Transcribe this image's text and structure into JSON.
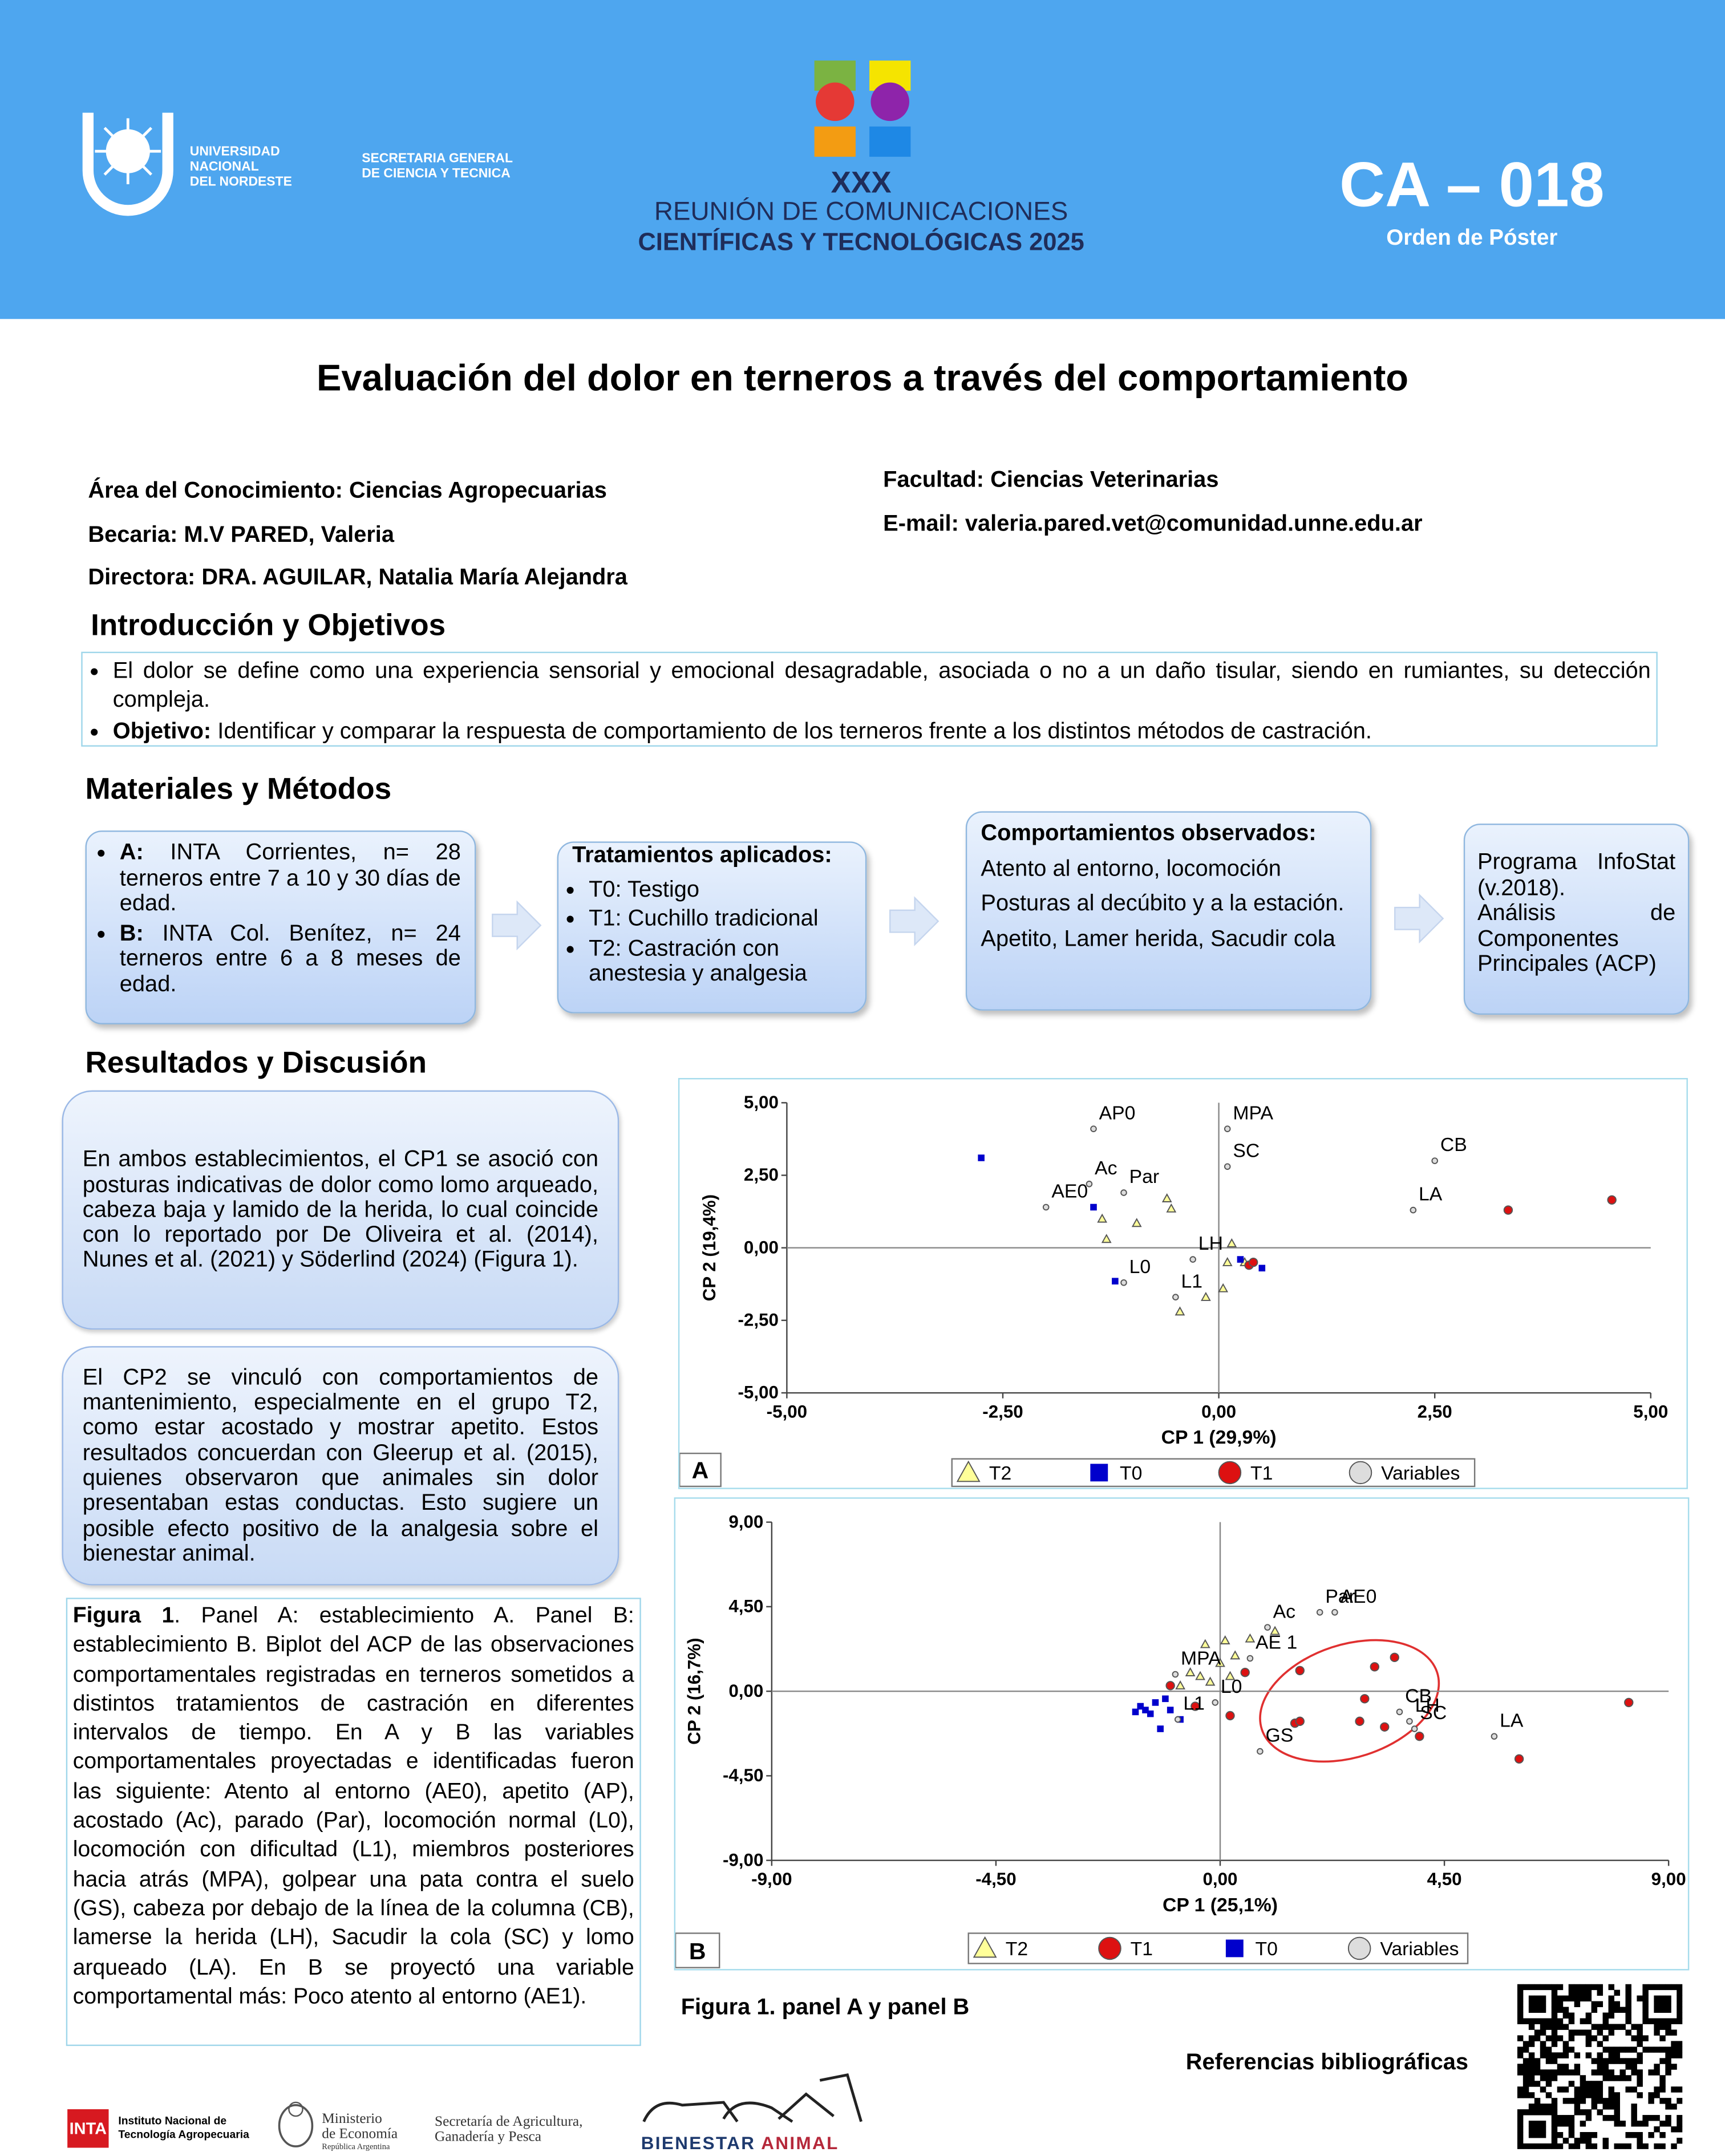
{
  "header": {
    "university": [
      "UNIVERSIDAD",
      "NACIONAL",
      "DEL NORDESTE"
    ],
    "secretaria": [
      "SECRETARIA GENERAL",
      "DE CIENCIA Y TECNICA"
    ],
    "event": [
      "XXX",
      "REUNIÓN DE COMUNICACIONES",
      "CIENTÍFICAS Y TECNOLÓGICAS 2025"
    ],
    "code": "CA – 018",
    "code_label": "Orden de Póster"
  },
  "title": "Evaluación del dolor en terneros a través del comportamiento",
  "info": {
    "area": "Área del Conocimiento: Ciencias Agropecuarias",
    "becaria": "Becaria: M.V PARED, Valeria",
    "directora": "Directora: DRA. AGUILAR, Natalia  María Alejandra",
    "facultad": "Facultad: Ciencias Veterinarias",
    "email": "E-mail: valeria.pared.vet@comunidad.unne.edu.ar"
  },
  "intro": {
    "heading": "Introducción y Objetivos",
    "bullet1": "El dolor se define como una experiencia sensorial y emocional desagradable, asociada o no a un daño tisular, siendo en rumiantes, su detección compleja.",
    "bullet2_label": "Objetivo:",
    "bullet2": " Identificar y comparar la respuesta de comportamiento de los terneros frente a los distintos métodos de castración."
  },
  "methods": {
    "heading": "Materiales y Métodos",
    "sites": [
      {
        "label": "A:",
        "text": " INTA Corrientes, n= 28 terneros entre  7 a 10 y 30 días de edad."
      },
      {
        "label": "B:",
        "text": " INTA Col. Benítez, n= 24 terneros entre 6 a 8 meses de edad."
      }
    ],
    "treatments_title": "Tratamientos aplicados:",
    "treatments": [
      "T0: Testigo",
      "T1: Cuchillo tradicional",
      "T2: Castración con anestesia y analgesia"
    ],
    "behaviors_title": "Comportamientos observados:",
    "behaviors": [
      "Atento al entorno, locomoción",
      "Posturas al decúbito y a la estación.",
      "Apetito, Lamer herida, Sacudir cola"
    ],
    "software": [
      "Programa InfoStat (v.2018).",
      "Análisis de Componentes Principales (ACP)"
    ]
  },
  "results": {
    "heading": "Resultados y Discusión",
    "paragraphs": [
      "En ambos establecimientos, el CP1 se asoció con posturas indicativas de dolor como lomo arqueado, cabeza baja y lamido de la herida, lo cual coincide con lo reportado por De Oliveira et al. (2014), Nunes et al. (2021) y Söderlind (2024) (Figura 1).",
      "El CP2 se vinculó con comportamientos de mantenimiento, especialmente en el grupo T2, como estar acostado y mostrar apetito. Estos resultados concuerdan con Gleerup et al. (2015), quienes observaron que animales sin dolor presentaban estas conductas. Esto sugiere un posible efecto positivo de la analgesia sobre el bienestar animal."
    ],
    "caption_label": "Figura 1",
    "caption": ". Panel A: establecimiento A. Panel B: establecimiento B. Biplot del ACP de las observaciones comportamentales registradas en terneros sometidos a distintos tratamientos de castración en diferentes intervalos de tiempo. En A y B las variables comportamentales proyectadas e identificadas fueron las siguiente: Atento al entorno (AE0), apetito (AP), acostado (Ac), parado (Par), locomoción normal (L0), locomoción con dificultad (L1), miembros posteriores hacia atrás (MPA), golpear una pata contra el suelo (GS), cabeza por debajo de la línea de la columna (CB), lamerse la herida (LH), Sacudir la cola (SC) y lomo arqueado (LA). En B se proyectó una variable comportamental más: Poco atento al entorno (AE1).",
    "figure_title": "Figura 1. panel A y panel B"
  },
  "references": "Referencias bibliográficas",
  "footer": {
    "inta": "INTA",
    "inta_name": [
      "Instituto Nacional de",
      "Tecnología Agropecuaria"
    ],
    "ministerio": [
      "Ministerio",
      "de Economía",
      "República Argentina"
    ],
    "secretaria": [
      "Secretaría de Agricultura,",
      "Ganadería y Pesca"
    ],
    "bienestar": [
      "BIENESTAR",
      "ANIMAL"
    ]
  },
  "chart_data": [
    {
      "type": "scatter",
      "panel": "A",
      "xlabel": "CP 1 (29,9%)",
      "ylabel": "CP 2 (19,4%)",
      "xlim": [
        -5,
        5
      ],
      "ylim": [
        -5,
        5
      ],
      "xticks": [
        {
          "value": -5,
          "label": "-5,00"
        },
        {
          "value": -2.5,
          "label": "-2,50"
        },
        {
          "value": 0,
          "label": "0,00"
        },
        {
          "value": 2.5,
          "label": "2,50"
        },
        {
          "value": 5,
          "label": "5,00"
        }
      ],
      "yticks": [
        {
          "value": -5,
          "label": "-5,00"
        },
        {
          "value": -2.5,
          "label": "-2,50"
        },
        {
          "value": 0,
          "label": "0,00"
        },
        {
          "value": 2.5,
          "label": "2,50"
        },
        {
          "value": 5,
          "label": "5,00"
        }
      ],
      "series": [
        {
          "name": "T2",
          "color": "#ffff99",
          "marker": "triangle",
          "x": [
            -1.35,
            -1.3,
            -0.95,
            -0.6,
            -0.55,
            0.15,
            0.1,
            0.05,
            -0.15,
            -0.45,
            0.3
          ],
          "y": [
            1.0,
            0.3,
            0.85,
            1.7,
            1.35,
            0.15,
            -0.5,
            -1.4,
            -1.7,
            -2.2,
            -0.5
          ]
        },
        {
          "name": "T0",
          "color": "#0000cc",
          "marker": "square",
          "x": [
            -2.75,
            -1.45,
            -1.2,
            0.25,
            0.5
          ],
          "y": [
            3.1,
            1.4,
            -1.15,
            -0.4,
            -0.7
          ]
        },
        {
          "name": "T1",
          "color": "#dd1111",
          "marker": "circle",
          "x": [
            3.35,
            4.55,
            0.35,
            0.4
          ],
          "y": [
            1.3,
            1.65,
            -0.6,
            -0.5
          ]
        },
        {
          "name": "Variables",
          "color": "#dddddd",
          "marker": "circle",
          "x": [
            -1.45,
            0.1,
            -1.5,
            -1.1,
            0.1,
            2.5,
            2.25,
            -2.0,
            -0.3,
            -1.1,
            -0.5
          ],
          "y": [
            4.1,
            4.1,
            2.2,
            1.9,
            2.8,
            3.0,
            1.3,
            1.4,
            -0.4,
            -1.2,
            -1.7
          ],
          "point_labels": [
            "AP0",
            "MPA",
            "Ac",
            "Par",
            "SC",
            "CB",
            "LA",
            "AE0",
            "LH",
            "L0",
            "L1"
          ]
        }
      ]
    },
    {
      "type": "scatter",
      "panel": "B",
      "xlabel": "CP 1 (25,1%)",
      "ylabel": "CP 2 (16,7%)",
      "xlim": [
        -9,
        9
      ],
      "ylim": [
        -9,
        9
      ],
      "xticks": [
        {
          "value": -9,
          "label": "-9,00"
        },
        {
          "value": -4.5,
          "label": "-4,50"
        },
        {
          "value": 0,
          "label": "0,00"
        },
        {
          "value": 4.5,
          "label": "4,50"
        },
        {
          "value": 9,
          "label": "9,00"
        }
      ],
      "yticks": [
        {
          "value": -9,
          "label": "-9,00"
        },
        {
          "value": -4.5,
          "label": "-4,50"
        },
        {
          "value": 0,
          "label": "0,00"
        },
        {
          "value": 4.5,
          "label": "4,50"
        },
        {
          "value": 9,
          "label": "9,00"
        }
      ],
      "series": [
        {
          "name": "T2",
          "color": "#ffff99",
          "marker": "triangle",
          "x": [
            -0.3,
            0.1,
            0.6,
            1.1,
            0.3,
            0.0,
            -0.4,
            -0.2,
            -0.6,
            0.2,
            -0.8
          ],
          "y": [
            2.5,
            2.7,
            2.8,
            3.2,
            1.9,
            1.5,
            0.8,
            0.5,
            1.0,
            0.8,
            0.3
          ]
        },
        {
          "name": "T1",
          "color": "#dd1111",
          "marker": "circle",
          "x": [
            -1.0,
            0.5,
            1.6,
            3.1,
            3.5,
            2.9,
            1.5,
            1.6,
            2.8,
            3.3,
            4.0,
            6.0,
            8.2,
            0.2,
            -0.5
          ],
          "y": [
            0.3,
            1.0,
            1.1,
            1.3,
            1.8,
            -0.4,
            -1.7,
            -1.6,
            -1.6,
            -1.9,
            -2.4,
            -3.6,
            -0.6,
            -1.3,
            -0.8
          ]
        },
        {
          "name": "T0",
          "color": "#0000cc",
          "marker": "square",
          "x": [
            -1.5,
            -1.3,
            -1.1,
            -1.6,
            -1.4,
            -1.0,
            -1.2,
            -0.8,
            -1.7
          ],
          "y": [
            -1.0,
            -0.6,
            -0.4,
            -0.8,
            -1.2,
            -1.0,
            -2.0,
            -1.5,
            -1.1
          ]
        },
        {
          "name": "Variables",
          "color": "#dddddd",
          "marker": "circle",
          "x": [
            2.0,
            2.3,
            0.95,
            -0.9,
            0.6,
            -0.1,
            -0.85,
            3.6,
            3.9,
            3.8,
            5.5,
            0.8
          ],
          "y": [
            4.2,
            4.2,
            3.4,
            0.9,
            1.75,
            -0.6,
            -1.5,
            -1.1,
            -2.0,
            -1.6,
            -2.4,
            -3.2
          ],
          "point_labels": [
            "Par",
            "AE0",
            "Ac",
            "MPA",
            "AE 1",
            "L0",
            "L1",
            "CB",
            "SC",
            "LH",
            "LA",
            "GS"
          ]
        }
      ]
    }
  ]
}
